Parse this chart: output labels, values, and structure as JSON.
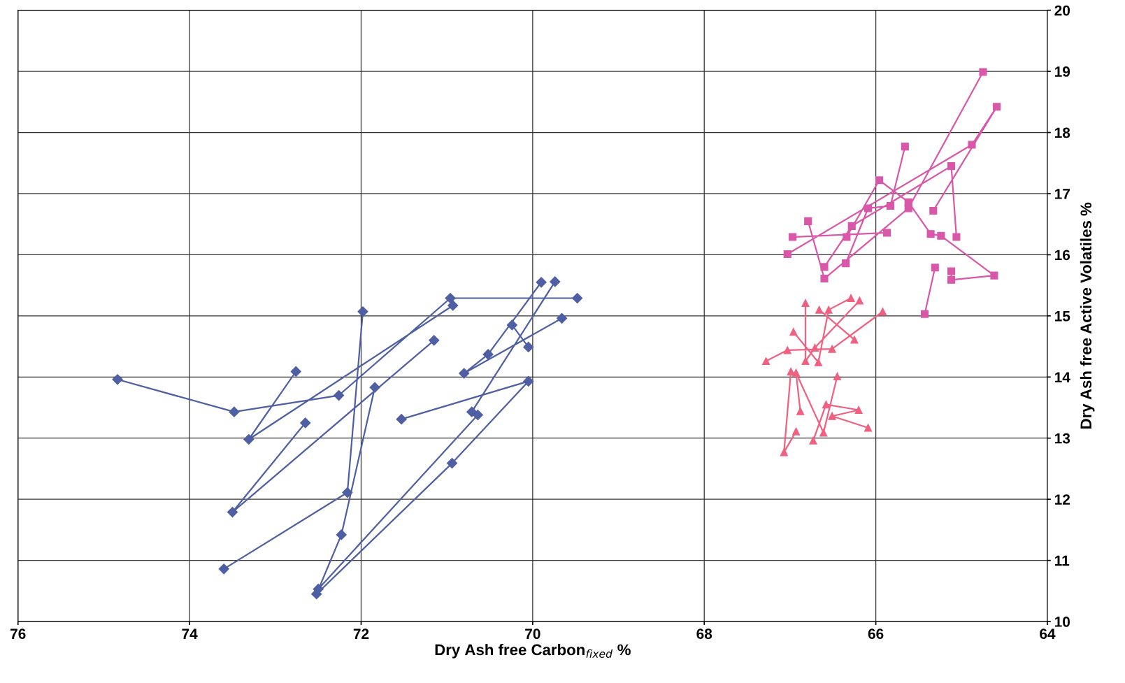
{
  "chart_data": {
    "type": "line",
    "xlabel": "Dry Ash free Carbon$_{fixed}$ %",
    "ylabel": "Dry Ash free Active Volatiles %",
    "xlim": [
      76,
      64
    ],
    "xticks": [
      76,
      74,
      72,
      70,
      68,
      66,
      64
    ],
    "ylim": [
      10,
      20
    ],
    "yticks": [
      10,
      11,
      12,
      13,
      14,
      15,
      16,
      17,
      18,
      19,
      20
    ],
    "grid": true,
    "legend": false,
    "line_style": "solid",
    "series": [
      {
        "color": "#4f5fa3",
        "marker": "diamond",
        "x": [
          74.84,
          73.48,
          72.26,
          70.96,
          69.48,
          null,
          72.76,
          73.31,
          70.93,
          null,
          72.65,
          73.5,
          71.15,
          null,
          71.98,
          72.16,
          73.6,
          null,
          71.84,
          72.23,
          72.52,
          70.94,
          70.05,
          71.53,
          null,
          69.66,
          70.8,
          70.52,
          69.9,
          null,
          70.71,
          69.74,
          null,
          70.64,
          72.5,
          null,
          70.05,
          70.24
        ],
        "values": [
          13.96,
          13.43,
          13.7,
          15.29,
          15.29,
          null,
          14.09,
          12.98,
          15.17,
          null,
          13.25,
          11.79,
          14.6,
          null,
          15.07,
          12.11,
          10.86,
          null,
          13.83,
          11.42,
          10.45,
          12.59,
          13.93,
          13.31,
          null,
          14.96,
          14.06,
          14.37,
          15.55,
          null,
          13.43,
          15.56,
          null,
          13.38,
          10.53,
          null,
          14.49,
          14.85
        ]
      },
      {
        "color": "#d957a8",
        "marker": "square",
        "x": [
          66.79,
          66.6,
          65.62,
          64.75,
          null,
          66.97,
          65.87,
          null,
          67.03,
          64.88,
          64.59,
          65.33,
          null,
          66.6,
          66.28,
          65.12,
          65.06,
          null,
          66.34,
          65.96,
          65.62,
          65.36,
          65.24,
          64.62,
          65.12,
          65.12,
          null,
          66.35,
          66.09,
          65.83,
          65.66,
          null,
          65.31,
          65.43
        ],
        "values": [
          16.55,
          15.61,
          16.76,
          18.99,
          null,
          16.29,
          16.36,
          null,
          16.01,
          17.8,
          18.42,
          16.72,
          null,
          15.8,
          16.47,
          17.45,
          16.29,
          null,
          16.29,
          17.22,
          16.86,
          16.34,
          16.31,
          15.66,
          15.59,
          15.73,
          null,
          15.86,
          16.76,
          16.8,
          17.77,
          null,
          15.79,
          15.03
        ]
      },
      {
        "color": "#f06080",
        "marker": "triangle",
        "x": [
          67.28,
          67.03,
          66.51,
          65.92,
          null,
          66.96,
          66.67,
          66.55,
          66.29,
          null,
          66.82,
          66.82,
          66.71,
          66.19,
          null,
          66.66,
          66.25,
          null,
          66.99,
          67.07,
          66.93,
          null,
          66.88,
          66.93,
          66.61,
          66.45,
          null,
          66.73,
          66.58,
          66.2,
          66.51,
          66.09
        ],
        "values": [
          14.26,
          14.44,
          14.46,
          15.07,
          null,
          14.74,
          14.24,
          15.1,
          15.29,
          null,
          15.21,
          14.26,
          14.48,
          15.25,
          null,
          15.1,
          14.61,
          null,
          14.09,
          12.77,
          13.11,
          null,
          13.44,
          14.07,
          13.09,
          14.01,
          null,
          12.96,
          13.55,
          13.46,
          13.36,
          13.17
        ]
      }
    ]
  }
}
